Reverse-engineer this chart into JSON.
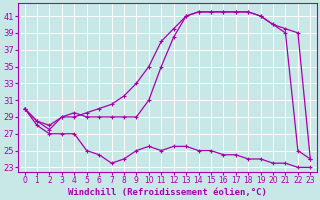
{
  "background_color": "#c8e8e8",
  "grid_color": "#b0d8d8",
  "line_color": "#aa00aa",
  "marker": "+",
  "xlabel": "Windchill (Refroidissement éolien,°C)",
  "xlim": [
    -0.5,
    23.5
  ],
  "ylim": [
    22.5,
    42.5
  ],
  "yticks": [
    23,
    25,
    27,
    29,
    31,
    33,
    35,
    37,
    39,
    41
  ],
  "xticks": [
    0,
    1,
    2,
    3,
    4,
    5,
    6,
    7,
    8,
    9,
    10,
    11,
    12,
    13,
    14,
    15,
    16,
    17,
    18,
    19,
    20,
    21,
    22,
    23
  ],
  "series1_x": [
    0,
    1,
    2,
    3,
    4,
    5,
    6,
    7,
    8,
    9,
    10,
    11,
    12,
    13,
    14,
    15,
    16,
    17,
    18,
    19,
    20,
    21,
    22,
    23
  ],
  "series1_y": [
    30.0,
    28.5,
    28.0,
    29.0,
    29.5,
    29.0,
    29.0,
    29.0,
    29.0,
    29.0,
    31.0,
    35.0,
    38.5,
    41.0,
    41.5,
    41.5,
    41.5,
    41.5,
    41.5,
    41.0,
    40.0,
    39.5,
    39.0,
    24.0
  ],
  "series2_x": [
    0,
    1,
    2,
    3,
    4,
    5,
    6,
    7,
    8,
    9,
    10,
    11,
    12,
    13,
    14,
    15,
    16,
    17,
    18,
    19,
    20,
    21,
    22,
    23
  ],
  "series2_y": [
    30.0,
    28.5,
    27.5,
    29.0,
    29.0,
    29.5,
    30.0,
    30.5,
    31.5,
    33.0,
    35.0,
    38.0,
    39.5,
    41.0,
    41.5,
    41.5,
    41.5,
    41.5,
    41.5,
    41.0,
    40.0,
    39.0,
    25.0,
    24.0
  ],
  "series3_x": [
    0,
    1,
    2,
    3,
    4,
    5,
    6,
    7,
    8,
    9,
    10,
    11,
    12,
    13,
    14,
    15,
    16,
    17,
    18,
    19,
    20,
    21,
    22,
    23
  ],
  "series3_y": [
    30.0,
    28.0,
    27.0,
    27.0,
    27.0,
    25.0,
    24.5,
    23.5,
    24.0,
    25.0,
    25.5,
    25.0,
    25.5,
    25.5,
    25.0,
    25.0,
    24.5,
    24.5,
    24.0,
    24.0,
    23.5,
    23.5,
    23.0,
    23.0
  ],
  "title_fontsize": 7,
  "xlabel_fontsize": 6.5,
  "tick_fontsize": 5.5
}
